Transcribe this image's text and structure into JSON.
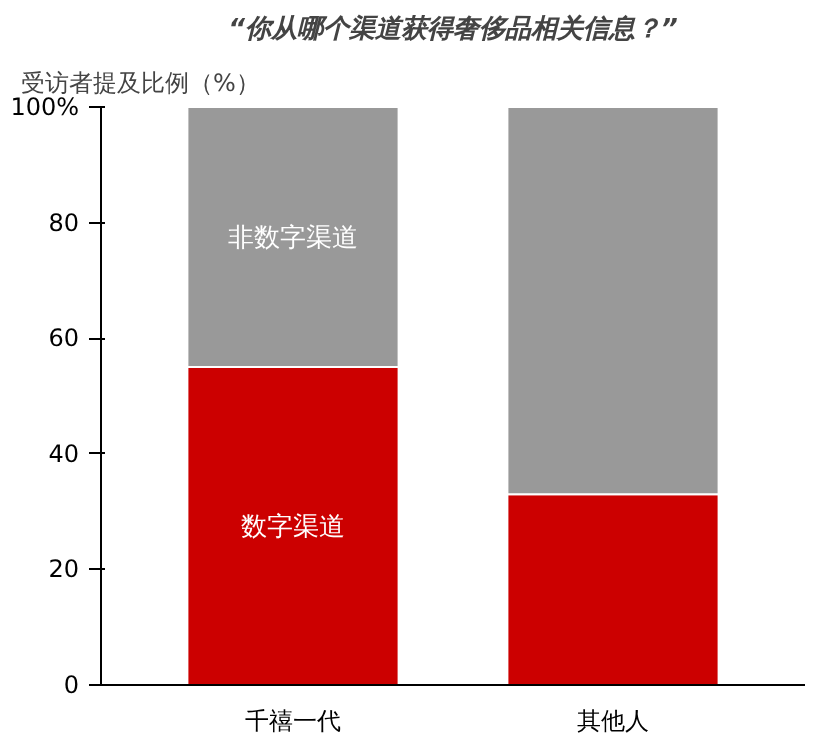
{
  "chart_data": {
    "type": "bar",
    "title": "“你从哪个渠道获得奢侈品相关信息？”",
    "ylabel": "受访者提及比例（%）",
    "categories": [
      "千禧一代",
      "其他人"
    ],
    "stacked": true,
    "series": [
      {
        "name": "数字渠道",
        "color": "#cc0000",
        "values": [
          55,
          33
        ]
      },
      {
        "name": "非数字渠道",
        "color": "#999999",
        "values": [
          45,
          67
        ]
      }
    ],
    "ylim": [
      0,
      100
    ],
    "yticks": [
      0,
      20,
      40,
      60,
      80,
      {
        "value": 100,
        "label": "100%"
      }
    ],
    "grid": false
  }
}
